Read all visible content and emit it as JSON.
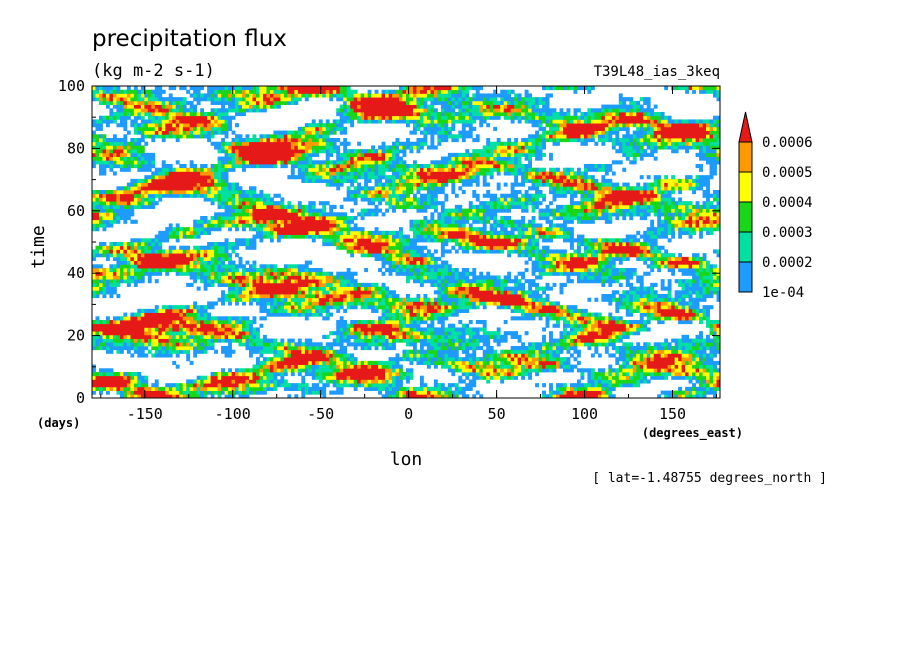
{
  "chart_data": {
    "type": "heatmap",
    "title": "precipitation flux",
    "subtitle": "(kg m-2 s-1)",
    "run_label": "T39L48_ias_3keq",
    "xlabel": "lon",
    "x_unit_label": "(degrees_east)",
    "ylabel": "time",
    "y_unit_label": "(days)",
    "footnote": "[ lat=-1.48755 degrees_north ]",
    "xlim": [
      -180,
      177
    ],
    "ylim": [
      0,
      100
    ],
    "x_ticks": [
      -150,
      -100,
      -50,
      0,
      50,
      100,
      150
    ],
    "y_ticks": [
      0,
      20,
      40,
      60,
      80,
      100
    ],
    "x_tick_labels": [
      "-150",
      "-100",
      "-50",
      "0",
      "50",
      "100",
      "150"
    ],
    "y_tick_labels": [
      "0",
      "20",
      "40",
      "60",
      "80",
      "100"
    ],
    "color_levels": [
      0.0001,
      0.0002,
      0.0003,
      0.0004,
      0.0005,
      0.0006
    ],
    "colorbar_labels": [
      "1e-04",
      "0.0002",
      "0.0003",
      "0.0004",
      "0.0005",
      "0.0006"
    ],
    "colors": [
      "#ffffff",
      "#1e9bff",
      "#00e0a0",
      "#19d619",
      "#ffff00",
      "#ff9900",
      "#e61919"
    ],
    "field_note": "noisy Hovmoller precipitation field; heavy cells near lon -180..-140, -80..-60, -20..20 and 100..130"
  }
}
